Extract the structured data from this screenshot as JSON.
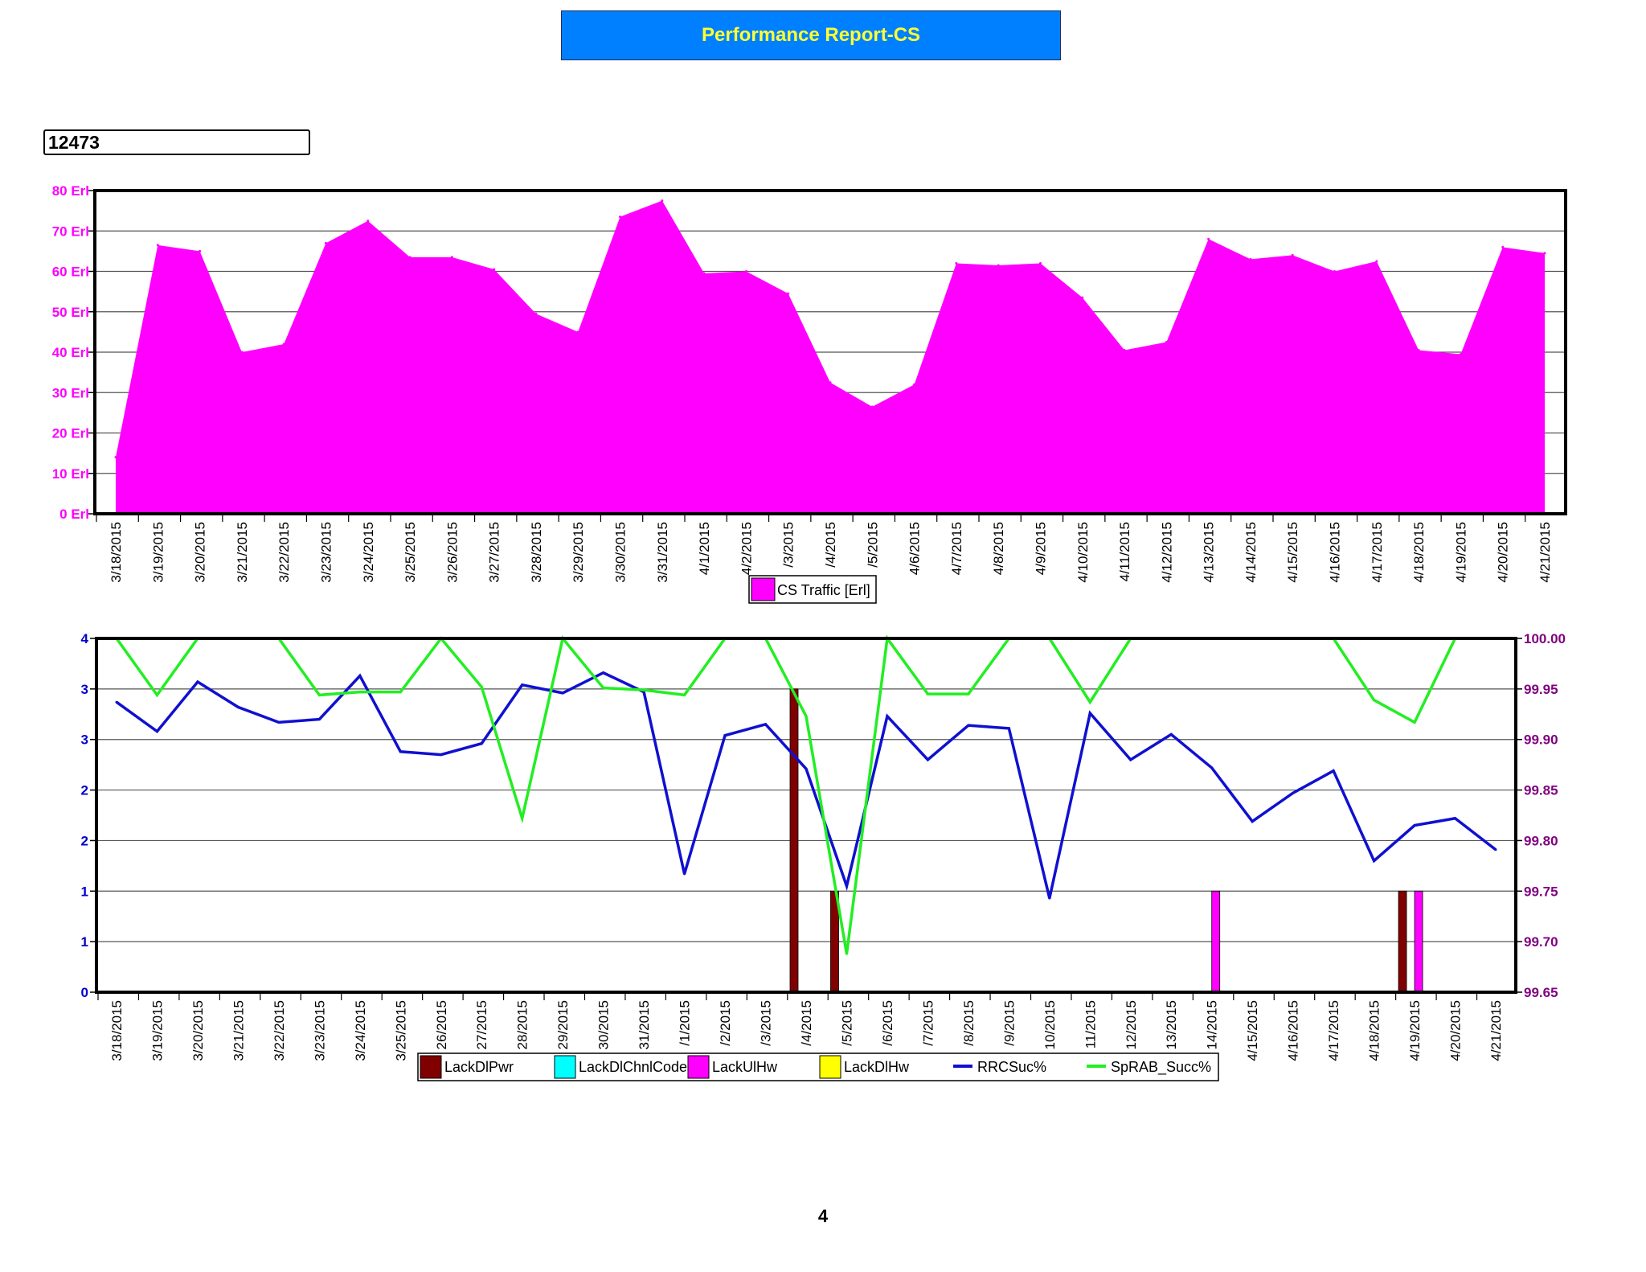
{
  "report": {
    "title": "Performance Report-CS",
    "id_label": "12473",
    "page_number": "4"
  },
  "colors": {
    "title_bg": "#0080ff",
    "title_text": "#ffff33",
    "traffic_fill": "#ff00ff",
    "left_axis_top": "#ff00ff",
    "left_axis_bottom": "#0000cc",
    "right_axis": "#800080",
    "lack_dl_pwr": "#800000",
    "lack_dl_chnl_code": "#00ffff",
    "lack_ul_hw": "#ff00ff",
    "lack_dl_hw": "#ffff00",
    "rrc": "#1010d0",
    "sprab": "#22ee22"
  },
  "chart_data": [
    {
      "type": "area",
      "x": [
        "3/18/2015",
        "3/19/2015",
        "3/20/2015",
        "3/21/2015",
        "3/22/2015",
        "3/23/2015",
        "3/24/2015",
        "3/25/2015",
        "3/26/2015",
        "3/27/2015",
        "3/28/2015",
        "3/29/2015",
        "3/30/2015",
        "3/31/2015",
        "4/1/2015",
        "4/2/2015",
        "4/3/2015",
        "4/4/2015",
        "4/5/2015",
        "4/6/2015",
        "4/7/2015",
        "4/8/2015",
        "4/9/2015",
        "4/10/2015",
        "4/11/2015",
        "4/12/2015",
        "4/13/2015",
        "4/14/2015",
        "4/15/2015",
        "4/16/2015",
        "4/17/2015",
        "4/18/2015",
        "4/19/2015",
        "4/20/2015",
        "4/21/2015"
      ],
      "tick_labels": [
        "3/18/2015",
        "3/19/2015",
        "3/20/2015",
        "3/21/2015",
        "3/22/2015",
        "3/23/2015",
        "3/24/2015",
        "3/25/2015",
        "3/26/2015",
        "3/27/2015",
        "3/28/2015",
        "3/29/2015",
        "3/30/2015",
        "3/31/2015",
        "4/1/2015",
        "4/2/2015",
        "/3/2015",
        "/4/2015",
        "/5/2015",
        "4/6/2015",
        "4/7/2015",
        "4/8/2015",
        "4/9/2015",
        "4/10/2015",
        "4/11/2015",
        "4/12/2015",
        "4/13/2015",
        "4/14/2015",
        "4/15/2015",
        "4/16/2015",
        "4/17/2015",
        "4/18/2015",
        "4/19/2015",
        "4/20/2015",
        "4/21/2015"
      ],
      "series": [
        {
          "name": "CS Traffic [Erl]",
          "values": [
            14,
            66.5,
            65,
            40,
            42,
            67,
            72.5,
            63.5,
            63.5,
            60.5,
            49.5,
            45,
            73.5,
            77.5,
            59.5,
            60,
            54.5,
            32.5,
            26.5,
            32,
            62,
            61.5,
            62,
            53.5,
            40.5,
            42.5,
            68,
            63,
            64,
            60,
            62.5,
            40.5,
            39.5,
            66,
            64.5
          ]
        }
      ],
      "y_ticks": [
        "0 Erl",
        "10 Erl",
        "20 Erl",
        "30 Erl",
        "40 Erl",
        "50 Erl",
        "60 Erl",
        "70 Erl",
        "80 Erl"
      ],
      "ylim": [
        0,
        80
      ],
      "grid": true,
      "legend": "bottom-center"
    },
    {
      "type": "bar",
      "x": [
        "3/18/2015",
        "3/19/2015",
        "3/20/2015",
        "3/21/2015",
        "3/22/2015",
        "3/23/2015",
        "3/24/2015",
        "3/25/2015",
        "3/26/2015",
        "3/27/2015",
        "3/28/2015",
        "3/29/2015",
        "3/30/2015",
        "3/31/2015",
        "4/1/2015",
        "4/2/2015",
        "4/3/2015",
        "4/4/2015",
        "4/5/2015",
        "4/6/2015",
        "4/7/2015",
        "4/8/2015",
        "4/9/2015",
        "4/10/2015",
        "4/11/2015",
        "4/12/2015",
        "4/13/2015",
        "4/14/2015",
        "4/15/2015",
        "4/16/2015",
        "4/17/2015",
        "4/18/2015",
        "4/19/2015",
        "4/20/2015",
        "4/21/2015"
      ],
      "tick_labels": [
        "3/18/2015",
        "3/19/2015",
        "3/20/2015",
        "3/21/2015",
        "3/22/2015",
        "3/23/2015",
        "3/24/2015",
        "3/25/2015",
        "26/2015",
        "27/2015",
        "28/2015",
        "29/2015",
        "30/2015",
        "31/2015",
        "/1/2015",
        "/2/2015",
        "/3/2015",
        "/4/2015",
        "/5/2015",
        "/6/2015",
        "/7/2015",
        "/8/2015",
        "/9/2015",
        "10/2015",
        "11/2015",
        "12/2015",
        "13/2015",
        "14/2015",
        "4/15/2015",
        "4/16/2015",
        "4/17/2015",
        "4/18/2015",
        "4/19/2015",
        "4/20/2015",
        "4/21/2015"
      ],
      "left_axis": {
        "ylim": [
          0,
          3.5
        ],
        "tick_values": [
          0,
          0.5,
          1,
          1.5,
          2,
          2.5,
          3,
          3.5
        ],
        "tick_labels": [
          "0",
          "1",
          "1",
          "2",
          "2",
          "3",
          "3",
          "4"
        ]
      },
      "right_axis": {
        "ylim": [
          99.65,
          100.0
        ],
        "tick_labels": [
          "99.65",
          "99.70",
          "99.75",
          "99.80",
          "99.85",
          "99.90",
          "99.95",
          "100.00"
        ]
      },
      "series": [
        {
          "name": "LackDlPwr",
          "type": "bar",
          "axis": "left",
          "values": [
            0,
            0,
            0,
            0,
            0,
            0,
            0,
            0,
            0,
            0,
            0,
            0,
            0,
            0,
            0,
            0,
            0,
            3,
            1,
            0,
            0,
            0,
            0,
            0,
            0,
            0,
            0,
            0,
            0,
            0,
            0,
            0,
            1,
            0,
            0
          ]
        },
        {
          "name": "LackDlChnlCode",
          "type": "bar",
          "axis": "left",
          "values": [
            0,
            0,
            0,
            0,
            0,
            0,
            0,
            0,
            0,
            0,
            0,
            0,
            0,
            0,
            0,
            0,
            0,
            0,
            0,
            0,
            0,
            0,
            0,
            0,
            0,
            0,
            0,
            0,
            0,
            0,
            0,
            0,
            0,
            0,
            0
          ]
        },
        {
          "name": "LackUlHw",
          "type": "bar",
          "axis": "left",
          "values": [
            0,
            0,
            0,
            0,
            0,
            0,
            0,
            0,
            0,
            0,
            0,
            0,
            0,
            0,
            0,
            0,
            0,
            0,
            0,
            0,
            0,
            0,
            0,
            0,
            0,
            0,
            0,
            1,
            0,
            0,
            0,
            0,
            1,
            0,
            0
          ]
        },
        {
          "name": "LackDlHw",
          "type": "bar",
          "axis": "left",
          "values": [
            0,
            0,
            0,
            0,
            0,
            0,
            0,
            0,
            0,
            0,
            0,
            0,
            0,
            0,
            0,
            0,
            0,
            0,
            0,
            0,
            0,
            0,
            0,
            0,
            0,
            0,
            0,
            0,
            0,
            0,
            0,
            0,
            0,
            0,
            0
          ]
        },
        {
          "name": "RRCSuc%",
          "type": "line",
          "axis": "right",
          "values": [
            99.937,
            99.908,
            99.957,
            99.932,
            99.917,
            99.92,
            99.963,
            99.888,
            99.885,
            99.896,
            99.954,
            99.946,
            99.966,
            99.947,
            99.767,
            99.904,
            99.915,
            99.871,
            99.755,
            99.923,
            99.88,
            99.914,
            99.911,
            99.743,
            99.926,
            99.88,
            99.905,
            99.872,
            99.819,
            99.847,
            99.869,
            99.78,
            99.815,
            99.822,
            99.791
          ]
        },
        {
          "name": "SpRAB_Succ%",
          "type": "line",
          "axis": "right",
          "values": [
            100.0,
            99.944,
            100.0,
            100.0,
            100.0,
            99.944,
            99.947,
            99.947,
            100.0,
            99.952,
            99.822,
            100.0,
            99.951,
            99.949,
            99.944,
            100.0,
            100.0,
            99.923,
            99.688,
            100.0,
            99.945,
            99.945,
            100.0,
            100.0,
            99.937,
            100.0,
            100.0,
            100.0,
            100.0,
            100.0,
            100.0,
            99.939,
            99.917,
            100.0,
            100.0
          ]
        }
      ],
      "grid": true,
      "legend": "bottom-center"
    }
  ]
}
